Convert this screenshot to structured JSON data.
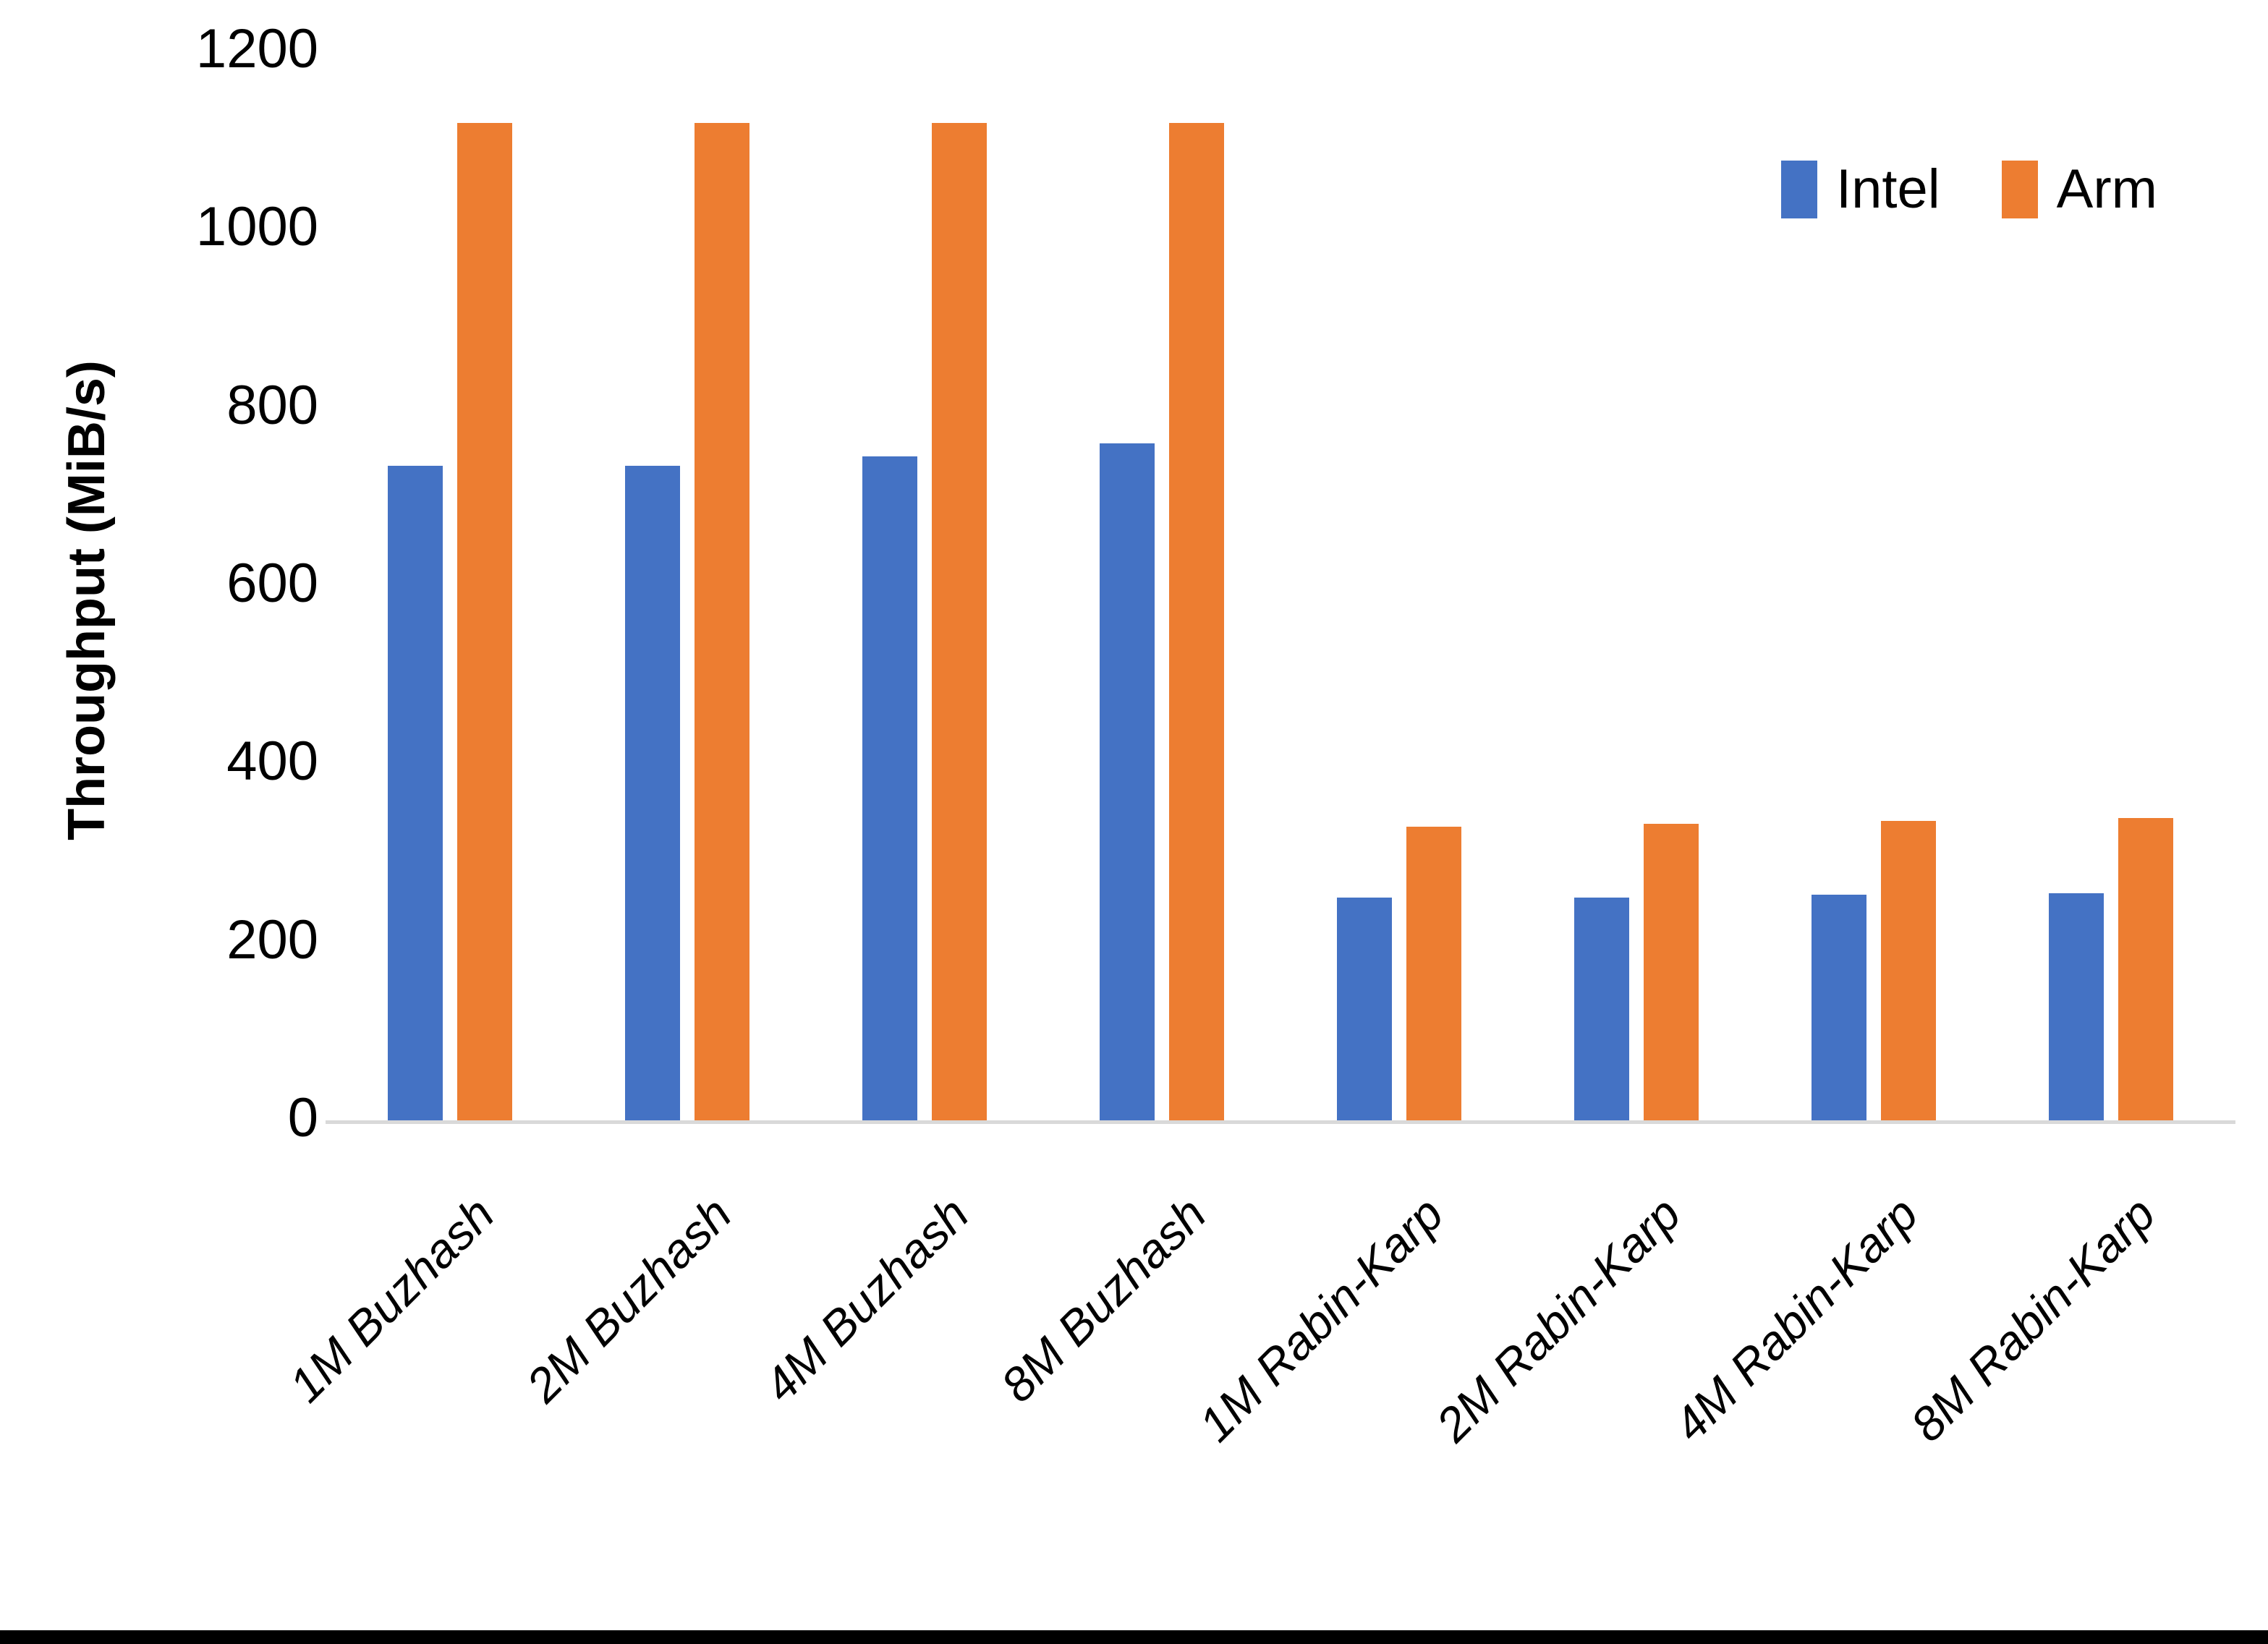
{
  "figure": {
    "background": "#FFFFFF",
    "colors": {
      "axis_line": "#D9D9D9",
      "text": "#000000",
      "bottom_border": "#000000"
    }
  },
  "y_axis": {
    "title": "Throughput (MiB/s)",
    "tick_labels": [
      "0",
      "200",
      "400",
      "600",
      "800",
      "1000",
      "1200"
    ]
  },
  "legend": {
    "position": "top-right",
    "items": [
      {
        "label": "Intel",
        "color": "#4472C4"
      },
      {
        "label": "Arm",
        "color": "#ED7D31"
      }
    ]
  },
  "chart_data": {
    "type": "bar",
    "title": "",
    "xlabel": "",
    "ylabel": "Throughput (MiB/s)",
    "ylim": [
      0,
      1200
    ],
    "yticks": [
      0,
      200,
      400,
      600,
      800,
      1000,
      1200
    ],
    "grid": false,
    "legend_position": "top-right",
    "categories": [
      "1M Buzhash",
      "2M Buzhash",
      "4M Buzhash",
      "8M Buzhash",
      "1M Rabin-Karp",
      "2M Rabin-Karp",
      "4M Rabin-Karp",
      "8M Rabin-Karp"
    ],
    "series": [
      {
        "name": "Intel",
        "color": "#4472C4",
        "values": [
          735,
          735,
          745,
          760,
          250,
          250,
          253,
          255
        ]
      },
      {
        "name": "Arm",
        "color": "#ED7D31",
        "values": [
          1120,
          1120,
          1120,
          1120,
          330,
          333,
          336,
          339
        ]
      }
    ]
  }
}
